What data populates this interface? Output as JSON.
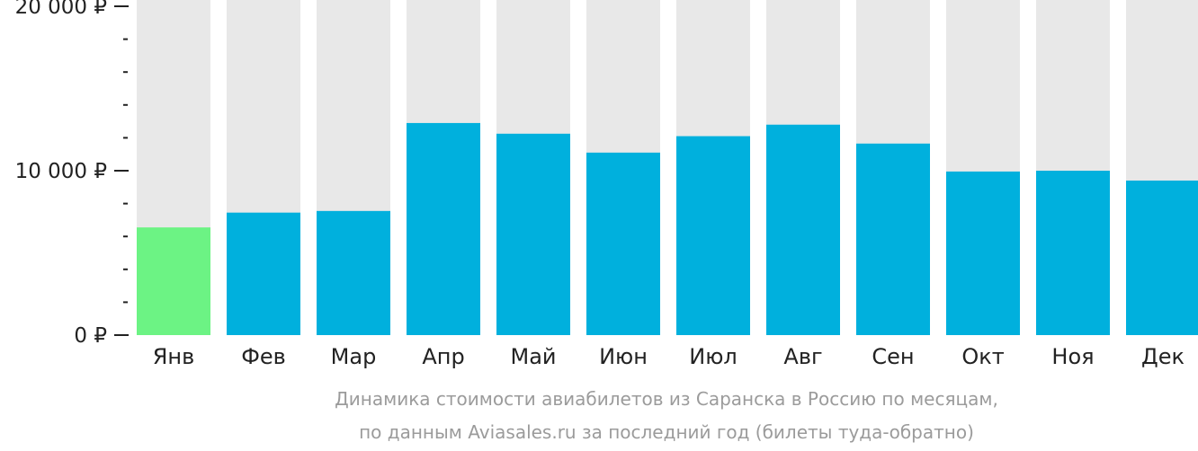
{
  "chart_data": {
    "type": "bar",
    "categories": [
      "Янв",
      "Фев",
      "Мар",
      "Апр",
      "Май",
      "Июн",
      "Июл",
      "Авг",
      "Сен",
      "Окт",
      "Ноя",
      "Дек"
    ],
    "values": [
      6550,
      7450,
      7550,
      12900,
      12250,
      11100,
      12100,
      12800,
      11650,
      9950,
      10000,
      9400
    ],
    "ylim": [
      0,
      20000
    ],
    "yticks": [
      {
        "value": 0,
        "label": "0 ₽"
      },
      {
        "value": 10000,
        "label": "10 000 ₽"
      },
      {
        "value": 20000,
        "label": "20 000 ₽"
      }
    ],
    "minor_tick_step": 2000,
    "highlight_index": 0,
    "colors": {
      "bar": "#00b0dd",
      "highlight": "#6cf384",
      "background_bar": "#e8e8e8",
      "axis": "#222222"
    },
    "caption": [
      "Динамика стоимости авиабилетов из Саранска в Россию по месяцам,",
      "по данным Aviasales.ru за последний год (билеты туда-обратно)"
    ]
  }
}
